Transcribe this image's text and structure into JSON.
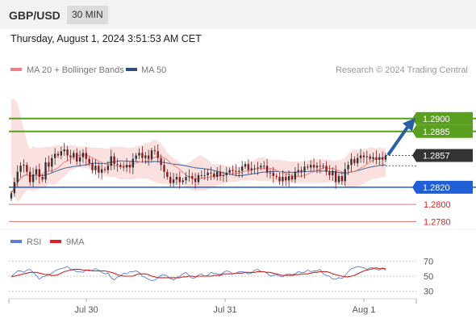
{
  "header": {
    "pair": "GBP/USD",
    "timeframe": "30 MIN"
  },
  "datetime": "Thursday, August 1, 2024 3:51:53 AM CET",
  "legend": {
    "ma20": "MA 20 + Bollinger Bands",
    "ma50": "MA 50",
    "source": "Research © 2024 Trading Central"
  },
  "rsi_legend": {
    "rsi": "RSI",
    "ma9": "9MA"
  },
  "colors": {
    "resistance": "#5aa01e",
    "support": "#1f5fd6",
    "target_red": "#e07070",
    "last_price_bg": "#333333",
    "arrow": "#2b5fa3",
    "bollinger": "#fbe0e0",
    "ma20": "#f08080",
    "ma50": "#4a6fa5",
    "candle_up": "#333333",
    "candle_down": "#8b1a1a",
    "rsi": "#5b7fd6",
    "rsi_ma": "#cc2222"
  },
  "chart_data": [
    {
      "type": "candlestick",
      "instrument": "GBP/USD",
      "interval": "30 MIN",
      "ylim": [
        1.2771,
        1.2944
      ],
      "x_ticks": [
        "Jul 30",
        "Jul 31",
        "Aug 1"
      ],
      "levels": [
        {
          "label": "1.2900",
          "value": 1.29,
          "kind": "resistance"
        },
        {
          "label": "1.2885",
          "value": 1.2885,
          "kind": "resistance"
        },
        {
          "label": "1.2857",
          "value": 1.2857,
          "kind": "last"
        },
        {
          "label": "1.2820",
          "value": 1.282,
          "kind": "support"
        },
        {
          "label": "1.2800",
          "value": 1.28,
          "kind": "target"
        },
        {
          "label": "1.2780",
          "value": 1.278,
          "kind": "target"
        }
      ],
      "close": [
        1.2813,
        1.2826,
        1.2838,
        1.2845,
        1.2846,
        1.2838,
        1.2826,
        1.2835,
        1.2841,
        1.2832,
        1.2829,
        1.2849,
        1.2844,
        1.2854,
        1.2859,
        1.2857,
        1.2862,
        1.2864,
        1.2857,
        1.2855,
        1.286,
        1.285,
        1.2855,
        1.286,
        1.2853,
        1.2848,
        1.284,
        1.2845,
        1.2837,
        1.2841,
        1.284,
        1.2845,
        1.2856,
        1.2847,
        1.2846,
        1.2844,
        1.2843,
        1.2846,
        1.2843,
        1.2853,
        1.2857,
        1.286,
        1.2854,
        1.2857,
        1.2853,
        1.2863,
        1.2862,
        1.2854,
        1.2846,
        1.2838,
        1.2832,
        1.2825,
        1.2829,
        1.2832,
        1.2826,
        1.2828,
        1.2832,
        1.2833,
        1.283,
        1.2826,
        1.2834,
        1.2834,
        1.2834,
        1.2837,
        1.2836,
        1.2832,
        1.2838,
        1.2833,
        1.2834,
        1.2837,
        1.284,
        1.2839,
        1.2838,
        1.2839,
        1.2844,
        1.2847,
        1.284,
        1.2842,
        1.2842,
        1.2843,
        1.2845,
        1.2845,
        1.2837,
        1.2837,
        1.2833,
        1.2832,
        1.2827,
        1.2832,
        1.2828,
        1.2833,
        1.2829,
        1.2838,
        1.284,
        1.2838,
        1.2844,
        1.2843,
        1.2846,
        1.2843,
        1.2845,
        1.2844,
        1.2845,
        1.2838,
        1.2834,
        1.2839,
        1.2826,
        1.2833,
        1.2827,
        1.2841,
        1.2846,
        1.2853,
        1.2848,
        1.2854,
        1.2857,
        1.2855,
        1.2856,
        1.2853,
        1.2855,
        1.2852,
        1.2855,
        1.2852,
        1.2857
      ],
      "bollinger_upper": [
        1.2922,
        1.2923,
        1.2918,
        1.2903,
        1.2888,
        1.2874,
        1.2864,
        1.2868,
        1.2866,
        1.2866,
        1.2866,
        1.2867,
        1.2867,
        1.2867,
        1.2869,
        1.2869,
        1.2868,
        1.2869,
        1.2868,
        1.2869,
        1.2869,
        1.2868,
        1.2867,
        1.2867,
        1.2867,
        1.2867,
        1.2866,
        1.2866,
        1.2866,
        1.2866,
        1.2865,
        1.2865,
        1.2867,
        1.2867,
        1.2867,
        1.2867,
        1.2867,
        1.2866,
        1.2866,
        1.2866,
        1.2868,
        1.2869,
        1.2869,
        1.2871,
        1.2872,
        1.2874,
        1.2876,
        1.2874,
        1.287,
        1.2866,
        1.286,
        1.2857,
        1.2854,
        1.2852,
        1.2849,
        1.2846,
        1.2847,
        1.2849,
        1.2851,
        1.2854,
        1.2857,
        1.2857,
        1.2855,
        1.2852,
        1.2848,
        1.2847,
        1.2847,
        1.2846,
        1.2846,
        1.2845,
        1.2845,
        1.2844,
        1.2844,
        1.2844,
        1.2845,
        1.2847,
        1.2849,
        1.285,
        1.2852,
        1.2854,
        1.2855,
        1.2855,
        1.2853,
        1.2852,
        1.2852,
        1.2852,
        1.2852,
        1.2851,
        1.2851,
        1.285,
        1.285,
        1.285,
        1.285,
        1.285,
        1.285,
        1.2851,
        1.2852,
        1.2852,
        1.2853,
        1.2853,
        1.2852,
        1.2852,
        1.2852,
        1.2851,
        1.2851,
        1.2852,
        1.2852,
        1.2854,
        1.2859,
        1.2862,
        1.2864,
        1.2864,
        1.2863,
        1.2865,
        1.2865,
        1.2867,
        1.2866,
        1.2865,
        1.2867,
        1.2865,
        1.2866
      ],
      "bollinger_lower": [
        1.2836,
        1.2811,
        1.2802,
        1.2807,
        1.2812,
        1.2816,
        1.2817,
        1.2815,
        1.2817,
        1.2818,
        1.2819,
        1.2819,
        1.2824,
        1.2823,
        1.2823,
        1.2826,
        1.2829,
        1.2833,
        1.2836,
        1.284,
        1.284,
        1.2843,
        1.2843,
        1.2842,
        1.2842,
        1.2841,
        1.2839,
        1.2838,
        1.2837,
        1.2836,
        1.2833,
        1.2832,
        1.2832,
        1.2832,
        1.283,
        1.2829,
        1.2829,
        1.2829,
        1.2829,
        1.2829,
        1.283,
        1.283,
        1.283,
        1.283,
        1.283,
        1.2828,
        1.2826,
        1.2825,
        1.2824,
        1.2824,
        1.2824,
        1.2823,
        1.2823,
        1.2824,
        1.2824,
        1.2822,
        1.282,
        1.2818,
        1.2816,
        1.2816,
        1.2816,
        1.2816,
        1.2816,
        1.2817,
        1.2819,
        1.282,
        1.2822,
        1.2823,
        1.2823,
        1.2825,
        1.2826,
        1.2826,
        1.2826,
        1.2827,
        1.2828,
        1.2828,
        1.2828,
        1.2828,
        1.2828,
        1.2827,
        1.2827,
        1.2827,
        1.2827,
        1.2827,
        1.2826,
        1.2826,
        1.2825,
        1.2825,
        1.2825,
        1.2825,
        1.2825,
        1.2825,
        1.2825,
        1.2825,
        1.2825,
        1.2825,
        1.2825,
        1.2825,
        1.2825,
        1.2825,
        1.2825,
        1.2826,
        1.2826,
        1.2826,
        1.2825,
        1.2824,
        1.2823,
        1.2821,
        1.282,
        1.282,
        1.282,
        1.2821,
        1.2822,
        1.2824,
        1.2826,
        1.2828,
        1.283,
        1.283,
        1.2831,
        1.2832,
        1.2832
      ],
      "projection_target": 1.29,
      "rsi": {
        "levels": [
          "70",
          "50",
          "30"
        ],
        "level_values": [
          70,
          50,
          30
        ],
        "ylim": [
          20,
          80
        ],
        "values": [
          50,
          53,
          57,
          57,
          55,
          58,
          59,
          55,
          51,
          46,
          49,
          50,
          52,
          54,
          57,
          59,
          60,
          61,
          63,
          59,
          58,
          56,
          56,
          55,
          58,
          57,
          58,
          60,
          58,
          55,
          53,
          54,
          48,
          45,
          49,
          50,
          54,
          53,
          56,
          56,
          57,
          55,
          50,
          48,
          46,
          44,
          45,
          48,
          51,
          52,
          50,
          47,
          45,
          48,
          50,
          53,
          55,
          51,
          47,
          48,
          52,
          53,
          50,
          51,
          55,
          54,
          53,
          52,
          55,
          57,
          56,
          53,
          54,
          56,
          56,
          55,
          53,
          54,
          58,
          59,
          56,
          56,
          54,
          50,
          51,
          52,
          50,
          49,
          52,
          53,
          52,
          53,
          56,
          55,
          55,
          58,
          56,
          57,
          57,
          59,
          53,
          51,
          50,
          46,
          46,
          48,
          47,
          51,
          56,
          60,
          61,
          63,
          62,
          61,
          59,
          61,
          61,
          59,
          58,
          61,
          58
        ],
        "ma": [
          49,
          50,
          51,
          52,
          53,
          54,
          55,
          55,
          55,
          54,
          53,
          52,
          52,
          51,
          51,
          52,
          54,
          56,
          57,
          58,
          59,
          59,
          59,
          58,
          58,
          58,
          57,
          57,
          57,
          57,
          57,
          56,
          55,
          54,
          52,
          51,
          50,
          50,
          50,
          50,
          52,
          53,
          53,
          53,
          52,
          50,
          49,
          48,
          48,
          48,
          48,
          48,
          48,
          48,
          48,
          49,
          49,
          50,
          50,
          49,
          50,
          50,
          50,
          50,
          50,
          51,
          51,
          51,
          53,
          53,
          53,
          53,
          54,
          54,
          54,
          55,
          55,
          55,
          55,
          56,
          56,
          56,
          55,
          55,
          54,
          53,
          52,
          51,
          51,
          51,
          51,
          52,
          52,
          53,
          53,
          53,
          54,
          55,
          55,
          56,
          56,
          56,
          55,
          53,
          52,
          51,
          50,
          49,
          49,
          50,
          51,
          53,
          55,
          57,
          58,
          59,
          60,
          61,
          60,
          60,
          60
        ]
      }
    }
  ]
}
